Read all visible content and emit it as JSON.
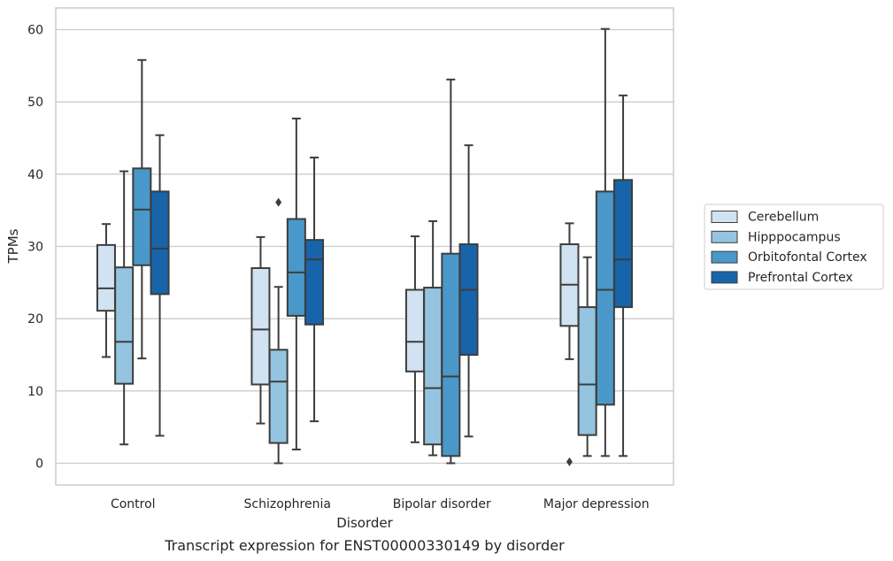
{
  "chart_data": {
    "type": "box",
    "caption": "Transcript expression for ENST00000330149 by disorder",
    "xlabel": "Disorder",
    "ylabel": "TPMs",
    "categories": [
      "Control",
      "Schizophrenia",
      "Bipolar disorder",
      "Major depression"
    ],
    "ylim": [
      -3,
      63
    ],
    "yticks": [
      0,
      10,
      20,
      30,
      40,
      50,
      60
    ],
    "grid": true,
    "legend_position": "right",
    "series": [
      {
        "name": "Cerebellum",
        "color": "#d1e2f2",
        "boxes": [
          {
            "whislo": 14.7,
            "q1": 21.1,
            "med": 24.2,
            "q3": 30.2,
            "whishi": 33.1,
            "fliers": []
          },
          {
            "whislo": 5.5,
            "q1": 10.9,
            "med": 18.5,
            "q3": 27.0,
            "whishi": 31.3,
            "fliers": []
          },
          {
            "whislo": 2.9,
            "q1": 12.7,
            "med": 16.8,
            "q3": 24.0,
            "whishi": 31.4,
            "fliers": []
          },
          {
            "whislo": 14.4,
            "q1": 19.0,
            "med": 24.7,
            "q3": 30.3,
            "whishi": 33.2,
            "fliers": [
              0.2
            ]
          }
        ]
      },
      {
        "name": "Hipppocampus",
        "color": "#94c4df",
        "boxes": [
          {
            "whislo": 2.6,
            "q1": 11.0,
            "med": 16.8,
            "q3": 27.1,
            "whishi": 40.4,
            "fliers": []
          },
          {
            "whislo": 0.0,
            "q1": 2.8,
            "med": 11.3,
            "q3": 15.7,
            "whishi": 24.4,
            "fliers": [
              36.1
            ]
          },
          {
            "whislo": 1.1,
            "q1": 2.6,
            "med": 10.4,
            "q3": 24.3,
            "whishi": 33.5,
            "fliers": []
          },
          {
            "whislo": 1.0,
            "q1": 3.9,
            "med": 10.9,
            "q3": 21.6,
            "whishi": 28.5,
            "fliers": []
          }
        ]
      },
      {
        "name": "Orbitofontal Cortex",
        "color": "#4a98c9",
        "boxes": [
          {
            "whislo": 14.5,
            "q1": 27.4,
            "med": 35.1,
            "q3": 40.8,
            "whishi": 55.8,
            "fliers": []
          },
          {
            "whislo": 1.9,
            "q1": 20.4,
            "med": 26.4,
            "q3": 33.8,
            "whishi": 47.7,
            "fliers": []
          },
          {
            "whislo": 0.0,
            "q1": 1.0,
            "med": 12.0,
            "q3": 29.0,
            "whishi": 53.1,
            "fliers": []
          },
          {
            "whislo": 1.0,
            "q1": 8.1,
            "med": 24.0,
            "q3": 37.6,
            "whishi": 60.1,
            "fliers": []
          }
        ]
      },
      {
        "name": "Prefrontal Cortex",
        "color": "#1764ab",
        "boxes": [
          {
            "whislo": 3.8,
            "q1": 23.4,
            "med": 29.7,
            "q3": 37.6,
            "whishi": 45.4,
            "fliers": []
          },
          {
            "whislo": 5.8,
            "q1": 19.2,
            "med": 28.2,
            "q3": 30.9,
            "whishi": 42.3,
            "fliers": []
          },
          {
            "whislo": 3.7,
            "q1": 15.0,
            "med": 24.0,
            "q3": 30.3,
            "whishi": 44.0,
            "fliers": []
          },
          {
            "whislo": 1.0,
            "q1": 21.6,
            "med": 28.2,
            "q3": 39.2,
            "whishi": 50.9,
            "fliers": []
          }
        ]
      }
    ]
  }
}
